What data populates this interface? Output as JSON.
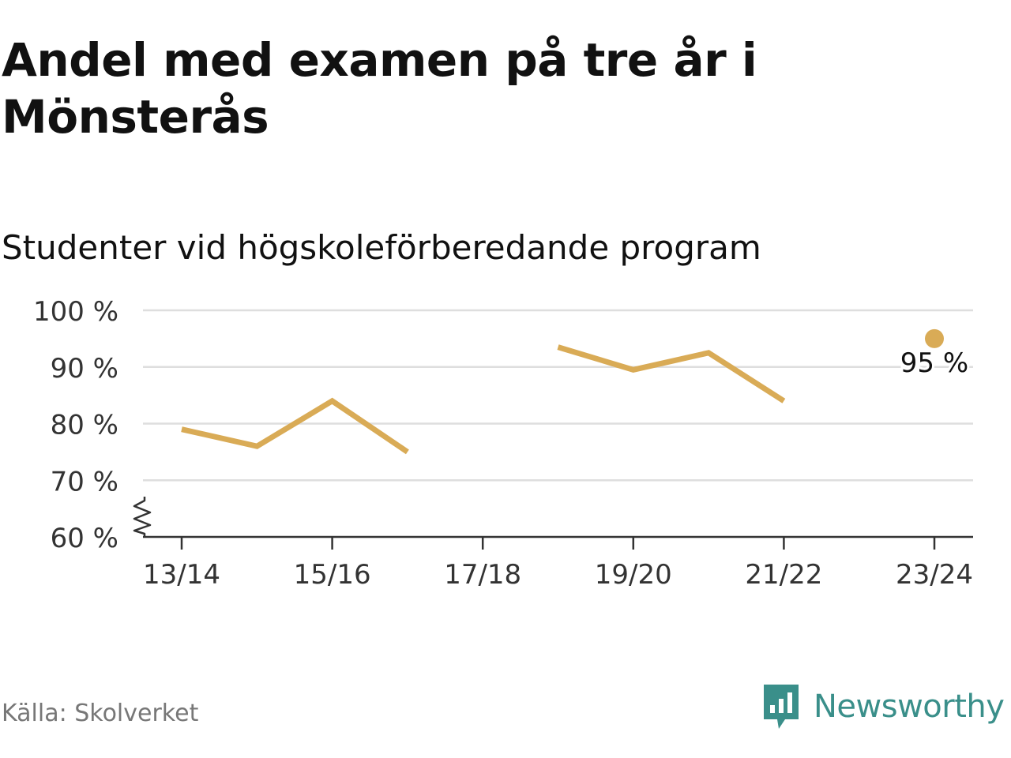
{
  "header": {
    "title": "Andel med examen på tre år i Mönsterås",
    "subtitle": "Studenter vid högskoleförberedande program"
  },
  "chart_data": {
    "type": "line",
    "x": [
      "13/14",
      "14/15",
      "15/16",
      "16/17",
      "17/18",
      "18/19",
      "19/20",
      "20/21",
      "21/22",
      "22/23",
      "23/24"
    ],
    "tick_labels": [
      "13/14",
      "15/16",
      "17/18",
      "19/20",
      "21/22",
      "23/24"
    ],
    "series": [
      {
        "values": [
          79,
          76,
          84,
          75,
          null,
          93.5,
          89.5,
          92.5,
          84,
          null,
          95
        ]
      }
    ],
    "ylim": [
      60,
      100
    ],
    "yticks": [
      60,
      70,
      80,
      90,
      100
    ],
    "y_unit": " %",
    "axis_break": true,
    "grid": true,
    "annotation": {
      "x": "23/24",
      "label": "95 %"
    },
    "color": "#d9ab56"
  },
  "footer": {
    "source": "Källa: Skolverket",
    "brand": "Newsworthy",
    "brand_icon": "bar-chart-speech-bubble-icon",
    "brand_color": "#3a8f8a"
  }
}
